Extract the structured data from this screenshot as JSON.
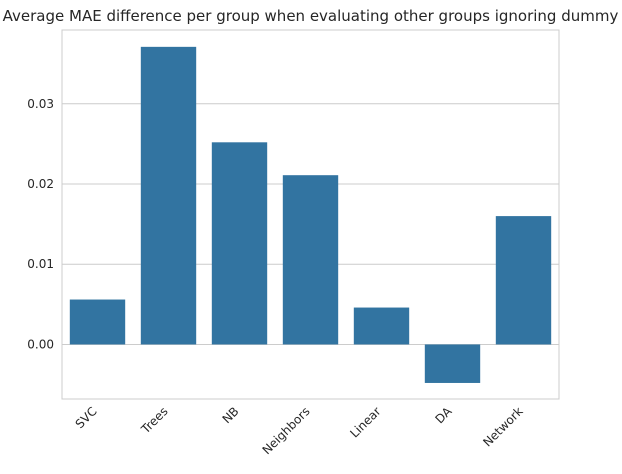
{
  "chart_data": {
    "type": "bar",
    "title": "Average MAE difference per group when evaluating other groups ignoring dummy",
    "xlabel": "",
    "ylabel": "",
    "categories": [
      "SVC",
      "Trees",
      "NB",
      "Neighbors",
      "Linear",
      "DA",
      "Network"
    ],
    "values": [
      0.0056,
      0.0371,
      0.0252,
      0.0211,
      0.0046,
      -0.0048,
      0.016
    ],
    "ylim": [
      -0.0068,
      0.0392
    ],
    "yticks": [
      0.0,
      0.01,
      0.02,
      0.03
    ],
    "ytick_labels": [
      "0.00",
      "0.01",
      "0.02",
      "0.03"
    ],
    "grid": "y",
    "bar_color": "#3274a1",
    "grid_color": "#cccccc",
    "axes_edge_color": "#cccccc"
  }
}
